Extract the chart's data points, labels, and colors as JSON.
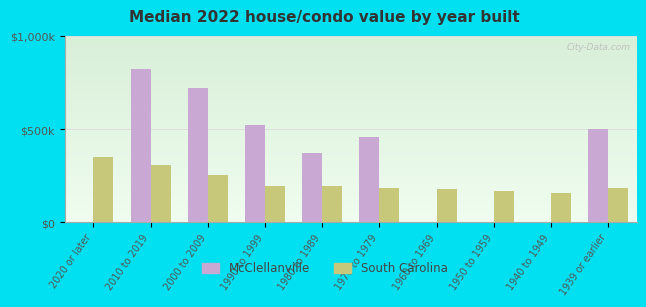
{
  "title": "Median 2022 house/condo value by year built",
  "categories": [
    "2020 or later",
    "2010 to 2019",
    "2000 to 2009",
    "1990 to 1999",
    "1980 to 1989",
    "1970 to 1979",
    "1960 to 1969",
    "1950 to 1959",
    "1940 to 1949",
    "1939 or earlier"
  ],
  "mcclellanville": [
    0,
    825000,
    725000,
    525000,
    375000,
    460000,
    0,
    0,
    0,
    500000
  ],
  "south_carolina": [
    350000,
    310000,
    255000,
    195000,
    195000,
    185000,
    180000,
    170000,
    160000,
    185000
  ],
  "mc_color": "#c9a8d4",
  "sc_color": "#c8c87a",
  "ylim": [
    0,
    1000000
  ],
  "ytick_labels": [
    "$0",
    "$500k",
    "$1,000k"
  ],
  "background_outer": "#00e0f0",
  "background_inner_top": "#d8efd8",
  "background_inner_bottom": "#f0fdf0",
  "watermark": "City-Data.com",
  "legend_mc": "McClellanville",
  "legend_sc": "South Carolina",
  "bar_width": 0.35
}
